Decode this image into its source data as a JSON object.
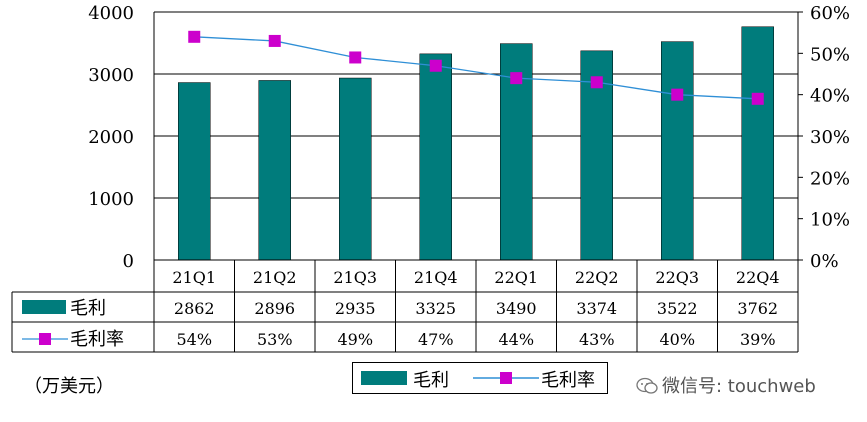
{
  "chart_data": {
    "type": "bar",
    "categories": [
      "21Q1",
      "21Q2",
      "21Q3",
      "21Q4",
      "22Q1",
      "22Q2",
      "22Q3",
      "22Q4"
    ],
    "series": [
      {
        "name": "毛利",
        "type": "bar",
        "axis": "left",
        "values": [
          2862,
          2896,
          2935,
          3325,
          3490,
          3374,
          3522,
          3762
        ],
        "color": "#007c7c"
      },
      {
        "name": "毛利率",
        "type": "line",
        "axis": "right",
        "values": [
          54,
          53,
          49,
          47,
          44,
          43,
          40,
          39
        ],
        "color": "#cc00cc",
        "line_color": "#2f8fd6"
      }
    ],
    "table_rows": [
      {
        "label": "毛利",
        "cells": [
          "2862",
          "2896",
          "2935",
          "3325",
          "3490",
          "3374",
          "3522",
          "3762"
        ]
      },
      {
        "label": "毛利率",
        "cells": [
          "54%",
          "53%",
          "49%",
          "47%",
          "44%",
          "43%",
          "40%",
          "39%"
        ]
      }
    ],
    "ylim_left": [
      0,
      4000
    ],
    "yticks_left": [
      "0",
      "1000",
      "2000",
      "3000",
      "4000"
    ],
    "ylim_right": [
      0,
      60
    ],
    "yticks_right": [
      "0%",
      "10%",
      "20%",
      "30%",
      "40%",
      "50%",
      "60%"
    ],
    "grid": true,
    "legend_position": "bottom-center",
    "unit_label": "（万美元）"
  },
  "watermark": {
    "text": "微信号: touchweb"
  }
}
